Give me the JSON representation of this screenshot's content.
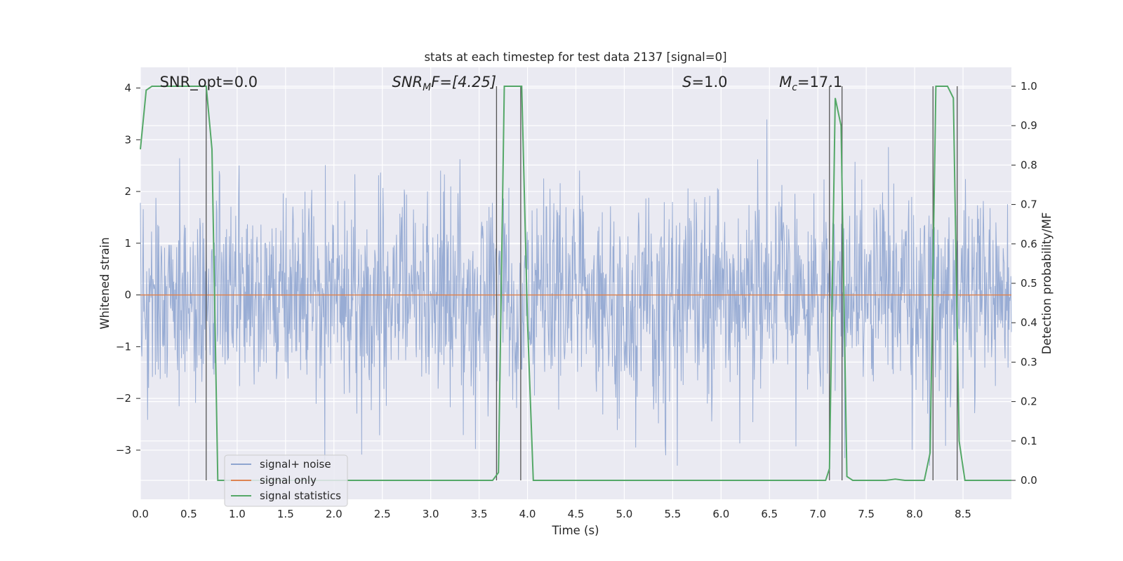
{
  "chart_data": {
    "type": "line",
    "title": "stats at each timestep for test data 2137 [signal=0]",
    "xlabel": "Time (s)",
    "ylabel": "Whitened strain",
    "y2label": "Detection probability/MF",
    "xlim": [
      0.0,
      9.0
    ],
    "ylim": [
      -3.95,
      4.4
    ],
    "y2lim": [
      -0.048,
      1.048
    ],
    "x_ticks": [
      "0.0",
      "0.5",
      "1.0",
      "1.5",
      "2.0",
      "2.5",
      "3.0",
      "3.5",
      "4.0",
      "4.5",
      "5.0",
      "5.5",
      "6.0",
      "6.5",
      "7.0",
      "7.5",
      "8.0",
      "8.5"
    ],
    "y_ticks": [
      "−3",
      "−2",
      "−1",
      "0",
      "1",
      "2",
      "3",
      "4"
    ],
    "y2_ticks": [
      "0.0",
      "0.1",
      "0.2",
      "0.3",
      "0.4",
      "0.5",
      "0.6",
      "0.7",
      "0.8",
      "0.9",
      "1.0"
    ],
    "grid": true,
    "legend_position": "lower-left",
    "annotations": [
      {
        "name": "snr-opt",
        "text": "SNR_opt=0.0",
        "x": 0.2
      },
      {
        "name": "snr-mf",
        "text": "SNR",
        "sub": "M",
        "rest": "F=[4.25]",
        "x": 2.6,
        "italic": true
      },
      {
        "name": "s-value",
        "text": "S",
        "rest": "=1.0",
        "x": 5.6,
        "italic": true
      },
      {
        "name": "chirp-mass",
        "text": "M",
        "sub": "c",
        "rest": "=17.1",
        "x": 6.6,
        "italic": true
      }
    ],
    "colors": {
      "background": "#eaeaf2",
      "grid": "#ffffff",
      "noise": "#8fa5d0",
      "signal_only": "#dd8452",
      "statistics": "#55a868",
      "markers": "#555555"
    },
    "series": [
      {
        "name": "signal+ noise",
        "kind": "noise",
        "seed": 2137,
        "n": 1800,
        "sigma": 1.0
      },
      {
        "name": "signal only",
        "x": [
          0.0,
          9.0
        ],
        "values": [
          0.0,
          0.0
        ]
      },
      {
        "name": "signal statistics",
        "x": [
          0.0,
          0.06,
          0.12,
          0.2,
          0.3,
          0.4,
          0.5,
          0.6,
          0.68,
          0.74,
          0.8,
          0.86,
          1.0,
          1.5,
          2.0,
          2.5,
          3.0,
          3.5,
          3.64,
          3.7,
          3.76,
          3.82,
          3.88,
          3.94,
          4.0,
          4.06,
          4.5,
          5.0,
          5.5,
          6.0,
          6.5,
          7.0,
          7.08,
          7.12,
          7.18,
          7.24,
          7.3,
          7.36,
          7.5,
          7.7,
          7.8,
          7.9,
          8.1,
          8.16,
          8.22,
          8.28,
          8.34,
          8.4,
          8.46,
          8.52,
          8.58,
          8.7,
          9.0
        ],
        "values": [
          0.84,
          0.99,
          1.0,
          1.0,
          1.0,
          1.0,
          1.0,
          1.0,
          1.0,
          0.84,
          0.0,
          0.0,
          0.0,
          0.0,
          0.0,
          0.0,
          0.0,
          0.0,
          0.0,
          0.02,
          1.0,
          1.0,
          1.0,
          1.0,
          0.4,
          0.0,
          0.0,
          0.0,
          0.0,
          0.0,
          0.0,
          0.0,
          0.0,
          0.03,
          0.97,
          0.9,
          0.01,
          0.0,
          0.0,
          0.0,
          0.003,
          0.0,
          0.0,
          0.07,
          1.0,
          1.0,
          1.0,
          0.97,
          0.1,
          0.0,
          0.0,
          0.0,
          0.0
        ]
      }
    ],
    "marker_lines_x": [
      0.68,
      3.68,
      3.93,
      7.12,
      7.25,
      8.19,
      8.44
    ]
  }
}
